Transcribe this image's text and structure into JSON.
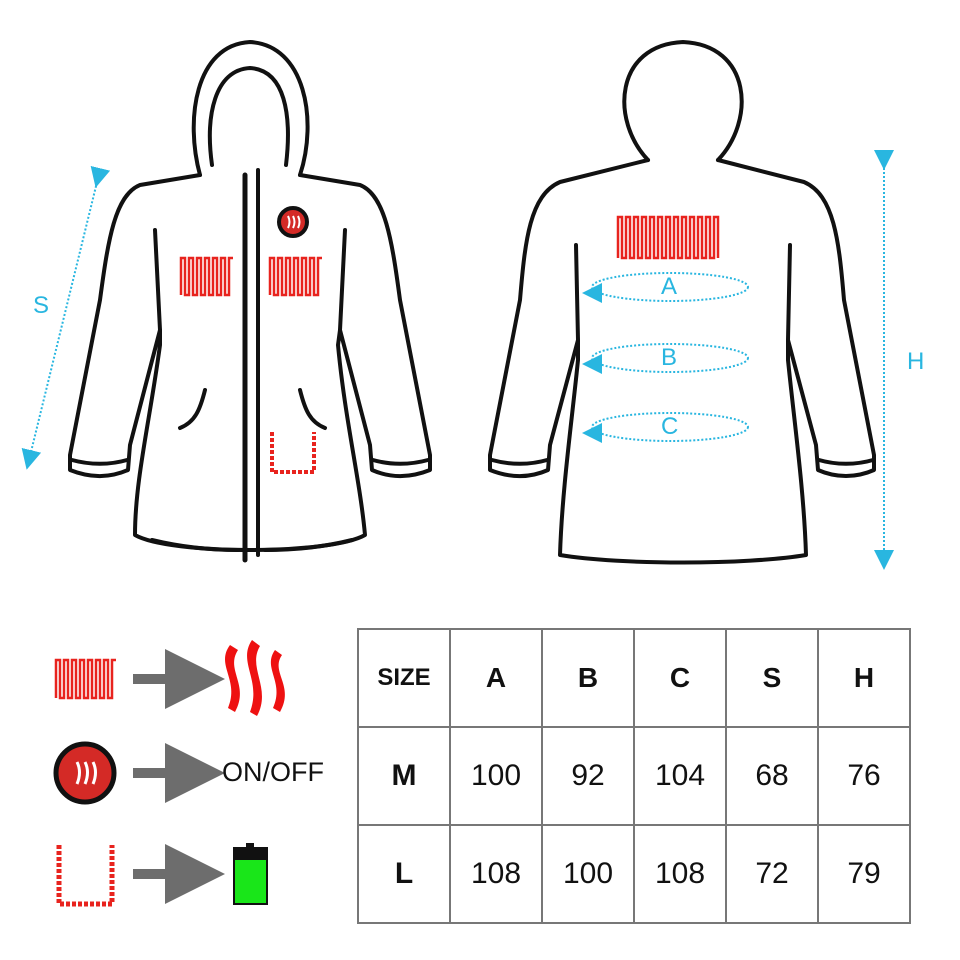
{
  "diagram": {
    "measure_labels": {
      "S": "S",
      "H": "H",
      "A": "A",
      "B": "B",
      "C": "C"
    },
    "colors": {
      "outline": "#111111",
      "heater": "#e8231e",
      "measure": "#29b6e0",
      "arrow": "#6d6d6d",
      "battery": "#19e619"
    }
  },
  "legend": [
    {
      "icon": "heating-pad-icon",
      "result_icon": "heat-waves-icon",
      "text": ""
    },
    {
      "icon": "power-button-icon",
      "result_icon": "",
      "text": "ON/OFF"
    },
    {
      "icon": "battery-pocket-icon",
      "result_icon": "battery-icon",
      "text": ""
    }
  ],
  "size_table": {
    "headers": [
      "SIZE",
      "A",
      "B",
      "C",
      "S",
      "H"
    ],
    "rows": [
      [
        "M",
        "100",
        "92",
        "104",
        "68",
        "76"
      ],
      [
        "L",
        "108",
        "100",
        "108",
        "72",
        "79"
      ]
    ]
  }
}
